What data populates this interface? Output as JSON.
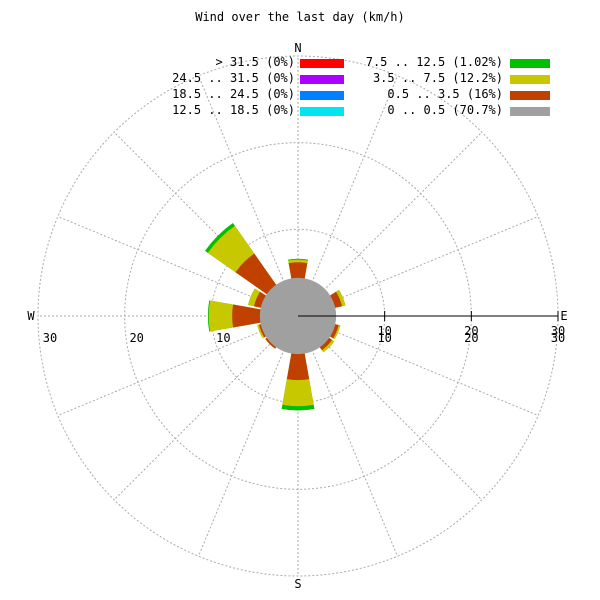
{
  "chart_data": {
    "type": "windrose",
    "title": "Wind over the last day (km/h)",
    "directions": {
      "n": "N",
      "e": "E",
      "s": "S",
      "w": "W"
    },
    "radial_ticks": [
      "10",
      "20",
      "30"
    ],
    "rmax": 30,
    "calm_radius": 4.4,
    "sector_width_deg": 20,
    "grid": true,
    "legend_position": "top-right",
    "legend": [
      {
        "label": "> 31.5 (0%)",
        "color": "#ff0000"
      },
      {
        "label": "24.5 .. 31.5 (0%)",
        "color": "#aa00ff"
      },
      {
        "label": "18.5 .. 24.5 (0%)",
        "color": "#0080ff"
      },
      {
        "label": "12.5 .. 18.5 (0%)",
        "color": "#00e5ee"
      },
      {
        "label": "7.5 .. 12.5 (1.02%)",
        "color": "#00c000"
      },
      {
        "label": "3.5 .. 7.5 (12.2%)",
        "color": "#c8c800"
      },
      {
        "label": "0.5 .. 3.5 (16%)",
        "color": "#c04000"
      },
      {
        "label": "0 .. 0.5 (70.7%)",
        "color": "#a0a0a0"
      }
    ],
    "sectors": [
      {
        "direction": "N",
        "speed_0_5_3_5": 6.2,
        "speed_3_5_7_5": 6.5,
        "speed_7_5_12_5": 6.6
      },
      {
        "direction": "ENE",
        "speed_0_5_3_5": 5.2,
        "speed_3_5_7_5": 5.6,
        "speed_7_5_12_5": 5.6
      },
      {
        "direction": "ESE",
        "speed_0_5_3_5": 4.8,
        "speed_3_5_7_5": 5.0,
        "speed_7_5_12_5": 5.0
      },
      {
        "direction": "SE",
        "speed_0_5_3_5": 4.8,
        "speed_3_5_7_5": 5.1,
        "speed_7_5_12_5": 5.1
      },
      {
        "direction": "S",
        "speed_0_5_3_5": 7.4,
        "speed_3_5_7_5": 10.4,
        "speed_7_5_12_5": 10.9
      },
      {
        "direction": "SW",
        "speed_0_5_3_5": 4.6,
        "speed_3_5_7_5": 4.6,
        "speed_7_5_12_5": 4.6
      },
      {
        "direction": "WSW",
        "speed_0_5_3_5": 4.6,
        "speed_3_5_7_5": 4.8,
        "speed_7_5_12_5": 4.8
      },
      {
        "direction": "W",
        "speed_0_5_3_5": 7.6,
        "speed_3_5_7_5": 10.3,
        "speed_7_5_12_5": 10.4
      },
      {
        "direction": "WNW",
        "speed_0_5_3_5": 5.2,
        "speed_3_5_7_5": 5.9,
        "speed_7_5_12_5": 5.9
      },
      {
        "direction": "NW",
        "speed_0_5_3_5": 8.8,
        "speed_3_5_7_5": 12.7,
        "speed_7_5_12_5": 13.1
      }
    ]
  }
}
